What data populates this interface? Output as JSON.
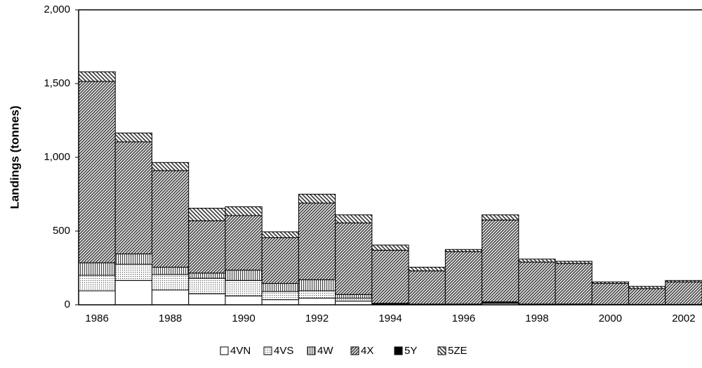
{
  "chart_data": {
    "type": "stacked-bar",
    "y_label": "Landings (tonnes)",
    "categories": [
      "1986",
      null,
      "1988",
      null,
      "1990",
      null,
      "1992",
      null,
      "1994",
      null,
      "1996",
      null,
      "1998",
      null,
      "2000",
      null,
      "2002"
    ],
    "series": [
      {
        "name": "4VN",
        "color": "#ffffff",
        "pattern": "solid",
        "values": [
          95,
          165,
          100,
          75,
          60,
          35,
          45,
          25,
          5,
          2,
          2,
          10,
          2,
          2,
          1,
          1,
          1
        ]
      },
      {
        "name": "4VS",
        "color": "#bbbbbb",
        "pattern": "dots",
        "values": [
          105,
          110,
          105,
          105,
          105,
          55,
          50,
          20,
          3,
          2,
          2,
          5,
          2,
          2,
          1,
          1,
          1
        ]
      },
      {
        "name": "4W",
        "color": "#888888",
        "pattern": "vertical",
        "values": [
          85,
          70,
          50,
          35,
          70,
          55,
          75,
          25,
          2,
          1,
          1,
          5,
          1,
          1,
          1,
          1,
          1
        ]
      },
      {
        "name": "4X",
        "color": "#666666",
        "pattern": "diagonal-dense",
        "values": [
          1230,
          760,
          655,
          355,
          370,
          310,
          520,
          485,
          360,
          225,
          355,
          555,
          285,
          275,
          142,
          107,
          152
        ]
      },
      {
        "name": "5Y",
        "color": "#000000",
        "pattern": "solid",
        "values": [
          0,
          0,
          0,
          0,
          0,
          0,
          0,
          0,
          0,
          0,
          0,
          0,
          0,
          0,
          0,
          0,
          0
        ]
      },
      {
        "name": "5ZE",
        "color": "#555555",
        "pattern": "diagonal",
        "values": [
          65,
          60,
          55,
          85,
          60,
          40,
          60,
          55,
          35,
          25,
          15,
          35,
          20,
          15,
          10,
          15,
          10
        ]
      }
    ],
    "ylim": [
      0,
      2000
    ],
    "yticks": [
      0,
      500,
      {
        "value": 1000,
        "label": "1,000"
      },
      {
        "value": 1500,
        "label": "1,500"
      },
      {
        "value": 2000,
        "label": "2,000"
      }
    ],
    "legend": "bottom"
  }
}
